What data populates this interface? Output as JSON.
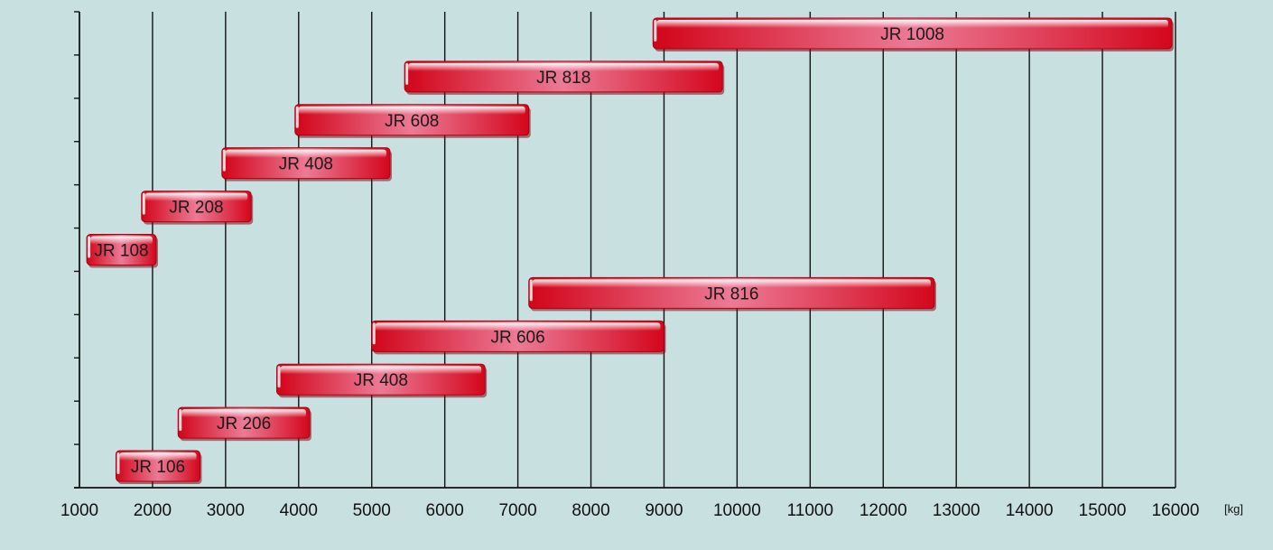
{
  "chart_data": {
    "type": "bar",
    "orientation": "horizontal-range",
    "title": "",
    "xlabel": "",
    "ylabel": "",
    "x_unit": "[kg]",
    "xlim": [
      1000,
      16000
    ],
    "x_ticks": [
      1000,
      2000,
      3000,
      4000,
      5000,
      6000,
      7000,
      8000,
      9000,
      10000,
      11000,
      12000,
      13000,
      14000,
      15000,
      16000
    ],
    "grid": true,
    "legend": "none",
    "colors": {
      "background": "#c9e0e1",
      "bar_dark": "#d4061c",
      "bar_light": "#ee7d99",
      "grid": "#111111"
    },
    "bars": [
      {
        "label": "JR 1008",
        "start": 8850,
        "end": 15950
      },
      {
        "label": "JR 818",
        "start": 5450,
        "end": 9800
      },
      {
        "label": "JR 608",
        "start": 3950,
        "end": 7150
      },
      {
        "label": "JR 408",
        "start": 2950,
        "end": 5250
      },
      {
        "label": "JR 208",
        "start": 1850,
        "end": 3350
      },
      {
        "label": "JR 108",
        "start": 1100,
        "end": 2050
      },
      {
        "label": "JR 816",
        "start": 7150,
        "end": 12700
      },
      {
        "label": "JR 606",
        "start": 5000,
        "end": 9000
      },
      {
        "label": "JR 408",
        "start": 3700,
        "end": 6550
      },
      {
        "label": "JR 206",
        "start": 2350,
        "end": 4150
      },
      {
        "label": "JR 106",
        "start": 1500,
        "end": 2650
      }
    ]
  }
}
